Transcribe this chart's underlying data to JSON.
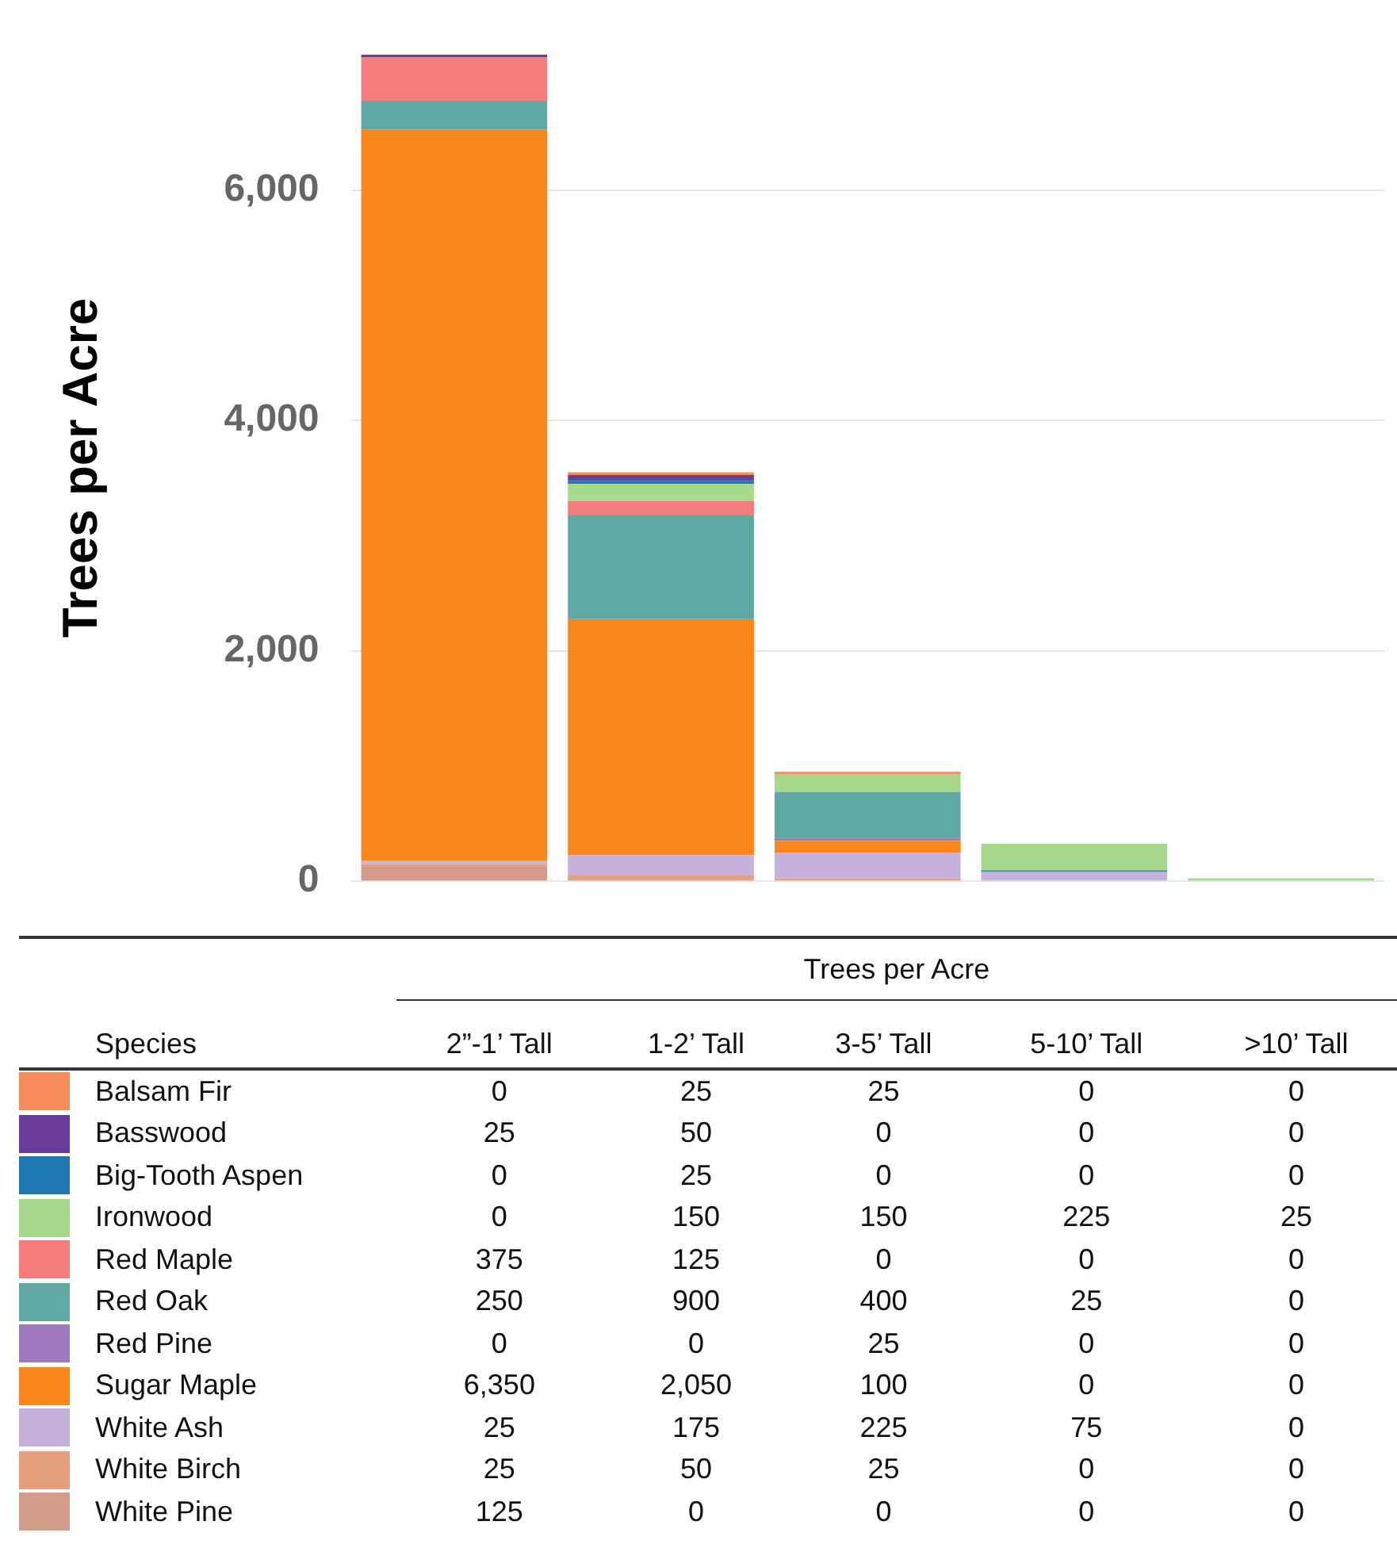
{
  "chart_data": {
    "type": "bar",
    "stacked": true,
    "ylabel": "Trees per Acre",
    "legend_title": "Species",
    "annotations": [
      "Trees per Acre"
    ],
    "categories": [
      "2”-1’ Tall",
      "1-2’ Tall",
      "3-5’ Tall",
      "5-10’ Tall",
      ">10’ Tall"
    ],
    "series": [
      {
        "name": "White Pine",
        "color": "#d29c88",
        "values": [
          125,
          0,
          0,
          0,
          0
        ],
        "value_labels": [
          "125",
          "0",
          "0",
          "0",
          "0"
        ]
      },
      {
        "name": "White Birch",
        "color": "#e59e7e",
        "values": [
          25,
          50,
          25,
          0,
          0
        ],
        "value_labels": [
          "25",
          "50",
          "25",
          "0",
          "0"
        ]
      },
      {
        "name": "White Ash",
        "color": "#c6b0dc",
        "values": [
          25,
          175,
          225,
          75,
          0
        ],
        "value_labels": [
          "25",
          "175",
          "225",
          "75",
          "0"
        ]
      },
      {
        "name": "Sugar Maple",
        "color": "#f8861a",
        "values": [
          6350,
          2050,
          100,
          0,
          0
        ],
        "value_labels": [
          "6,350",
          "2,050",
          "100",
          "0",
          "0"
        ]
      },
      {
        "name": "Red Pine",
        "color": "#9e7bbf",
        "values": [
          0,
          0,
          25,
          0,
          0
        ],
        "value_labels": [
          "0",
          "0",
          "25",
          "0",
          "0"
        ]
      },
      {
        "name": "Red Oak",
        "color": "#5fa8a3",
        "values": [
          250,
          900,
          400,
          25,
          0
        ],
        "value_labels": [
          "250",
          "900",
          "400",
          "25",
          "0"
        ]
      },
      {
        "name": "Red Maple",
        "color": "#f47c7c",
        "values": [
          375,
          125,
          0,
          0,
          0
        ],
        "value_labels": [
          "375",
          "125",
          "0",
          "0",
          "0"
        ]
      },
      {
        "name": "Ironwood",
        "color": "#a6d98c",
        "values": [
          0,
          150,
          150,
          225,
          25
        ],
        "value_labels": [
          "0",
          "150",
          "150",
          "225",
          "25"
        ]
      },
      {
        "name": "Big-Tooth Aspen",
        "color": "#1f78b4",
        "values": [
          0,
          25,
          0,
          0,
          0
        ],
        "value_labels": [
          "0",
          "25",
          "0",
          "0",
          "0"
        ]
      },
      {
        "name": "Basswood",
        "color": "#6a3d9a",
        "values": [
          25,
          50,
          0,
          0,
          0
        ],
        "value_labels": [
          "25",
          "50",
          "0",
          "0",
          "0"
        ]
      },
      {
        "name": "Balsam Fir",
        "color": "#f58c5a",
        "values": [
          0,
          25,
          25,
          0,
          0
        ],
        "value_labels": [
          "0",
          "25",
          "25",
          "0",
          "0"
        ]
      }
    ],
    "yticks": [
      0,
      {
        "value": 2000,
        "label": "2,000"
      },
      {
        "value": 4000,
        "label": "4,000"
      },
      {
        "value": 6000,
        "label": "6,000"
      }
    ],
    "ylim": [
      0,
      7175
    ],
    "grid": "y",
    "tick_labels": "y",
    "legend": "bottom"
  }
}
